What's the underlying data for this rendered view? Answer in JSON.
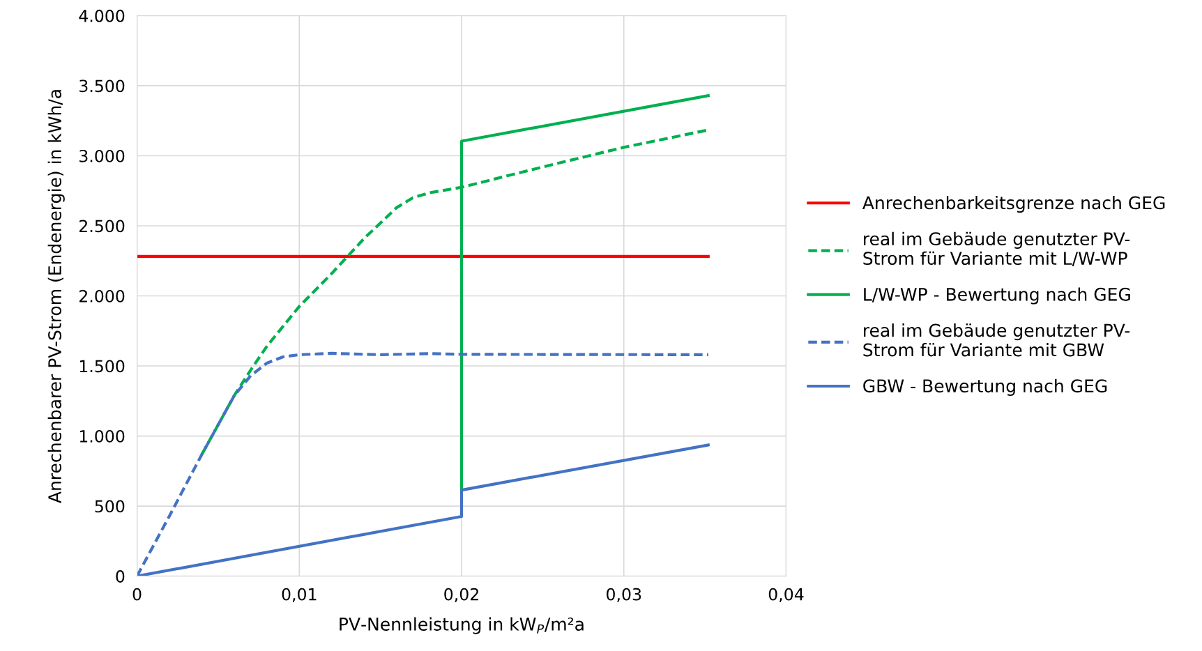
{
  "chart_data": {
    "type": "line",
    "xlabel": "PV-Nennleistung in kW$_{P}$/m²a",
    "ylabel": "Anrechenbarer PV-Strom (Endenergie) in kWh/a",
    "xlim": [
      0,
      0.04
    ],
    "ylim": [
      0,
      4000
    ],
    "xticks": [
      0,
      {
        "value": 0.01,
        "label": "0,01"
      },
      {
        "value": 0.02,
        "label": "0,02"
      },
      {
        "value": 0.03,
        "label": "0,03"
      },
      {
        "value": 0.04,
        "label": "0,04"
      }
    ],
    "yticks": [
      0,
      500,
      {
        "value": 1000,
        "label": "1.000"
      },
      {
        "value": 1500,
        "label": "1.500"
      },
      {
        "value": 2000,
        "label": "2.000"
      },
      {
        "value": 2500,
        "label": "2.500"
      },
      {
        "value": 3000,
        "label": "3.000"
      },
      {
        "value": 3500,
        "label": "3.500"
      },
      {
        "value": 4000,
        "label": "4.000"
      }
    ],
    "grid": true,
    "legend": "right",
    "marker": "none",
    "series": [
      {
        "name": "Anrechenbarkeitsgrenze nach GEG",
        "color": "#ff0000",
        "line_style": "solid",
        "x": [
          0,
          0.0352
        ],
        "values": [
          2282,
          2282
        ]
      },
      {
        "name": "real im Gebäude genutzter PV-\nStrom für Variante mit L/W-WP",
        "color": "#00b050",
        "line_style": "dashed",
        "x": [
          0.004,
          0.006,
          0.007,
          0.008,
          0.01,
          0.012,
          0.014,
          0.016,
          0.017,
          0.018,
          0.02,
          0.025,
          0.03,
          0.0352
        ],
        "values": [
          870,
          1290,
          1470,
          1640,
          1925,
          2160,
          2410,
          2630,
          2700,
          2735,
          2775,
          2920,
          3060,
          3184
        ]
      },
      {
        "name": "L/W-WP - Bewertung nach GEG",
        "color": "#00b050",
        "line_style": "solid",
        "x": [
          0.02,
          0.02,
          0.0352
        ],
        "values": [
          614,
          3104,
          3429
        ]
      },
      {
        "name": "real im Gebäude genutzter PV-\nStrom für Variante mit GBW",
        "color": "#4472c4",
        "line_style": "dashed",
        "x": [
          0,
          0.002,
          0.004,
          0.006,
          0.007,
          0.008,
          0.009,
          0.01,
          0.012,
          0.015,
          0.018,
          0.02,
          0.0352
        ],
        "values": [
          0,
          430,
          870,
          1290,
          1430,
          1520,
          1565,
          1580,
          1590,
          1580,
          1588,
          1583,
          1580
        ]
      },
      {
        "name": "GBW - Bewertung nach GEG",
        "color": "#4472c4",
        "line_style": "solid",
        "x": [
          0,
          0.02,
          0.02,
          0.0352
        ],
        "values": [
          0,
          426,
          614,
          936
        ]
      }
    ]
  }
}
